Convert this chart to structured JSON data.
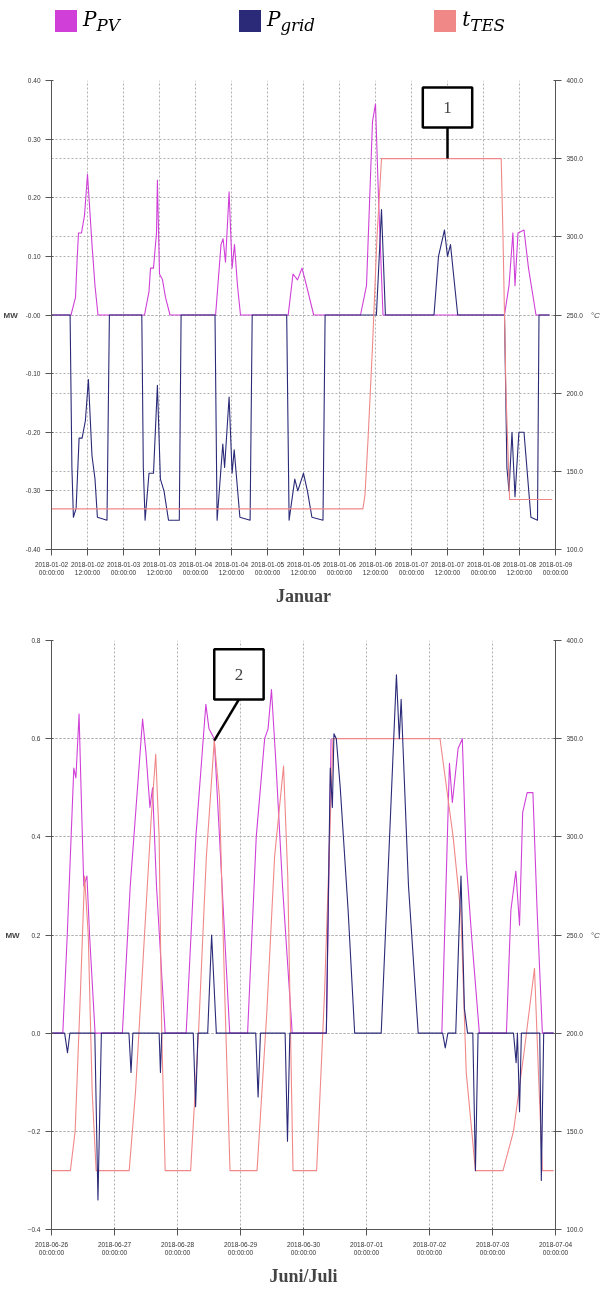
{
  "chart_data": [
    {
      "type": "line",
      "title": "Januar",
      "ylabel": "MW",
      "y2label": "°C",
      "legend": "top",
      "grid": true,
      "xlim": [
        "2018-01-02T00:00",
        "2018-01-09T00:00"
      ],
      "xticks": [
        {
          "value": "2018-01-02T00:00",
          "label": "2018-01-02 00:00:00"
        },
        {
          "value": "2018-01-02T12:00",
          "label": "2018-01-02 12:00:00"
        },
        {
          "value": "2018-01-03T00:00",
          "label": "2018-01-03 00:00:00"
        },
        {
          "value": "2018-01-03T12:00",
          "label": "2018-01-03 12:00:00"
        },
        {
          "value": "2018-01-04T00:00",
          "label": "2018-01-04 00:00:00"
        },
        {
          "value": "2018-01-04T12:00",
          "label": "2018-01-04 12:00:00"
        },
        {
          "value": "2018-01-05T00:00",
          "label": "2018-01-05 00:00:00"
        },
        {
          "value": "2018-01-05T12:00",
          "label": "2018-01-05 12:00:00"
        },
        {
          "value": "2018-01-06T00:00",
          "label": "2018-01-06 00:00:00"
        },
        {
          "value": "2018-01-06T12:00",
          "label": "2018-01-06 12:00:00"
        },
        {
          "value": "2018-01-07T00:00",
          "label": "2018-01-07 00:00:00"
        },
        {
          "value": "2018-01-07T12:00",
          "label": "2018-01-07 12:00:00"
        },
        {
          "value": "2018-01-08T00:00",
          "label": "2018-01-08 00:00:00"
        },
        {
          "value": "2018-01-08T12:00",
          "label": "2018-01-08 12:00:00"
        },
        {
          "value": "2018-01-09T00:00",
          "label": "2018-01-09 00:00:00"
        }
      ],
      "ylim": [
        -0.4,
        0.4
      ],
      "yticks": [
        {
          "value": 0.4,
          "label": "0.40"
        },
        {
          "value": 0.3,
          "label": "0.30"
        },
        {
          "value": 0.2,
          "label": "0.20"
        },
        {
          "value": 0.1,
          "label": "0.10"
        },
        {
          "value": 0,
          "label": "-0.00"
        },
        {
          "value": -0.1,
          "label": "-0.10"
        },
        {
          "value": -0.2,
          "label": "-0.20"
        },
        {
          "value": -0.3,
          "label": "-0.30"
        },
        {
          "value": -0.4,
          "label": "-0.40"
        }
      ],
      "y2lim": [
        100,
        400
      ],
      "y2ticks": [
        {
          "value": 400,
          "label": "400.0"
        },
        {
          "value": 350,
          "label": "350.0"
        },
        {
          "value": 300,
          "label": "300.0"
        },
        {
          "value": 250,
          "label": "250.0"
        },
        {
          "value": 200,
          "label": "200.0"
        },
        {
          "value": 150,
          "label": "150.0"
        },
        {
          "value": 100,
          "label": "100.0"
        }
      ],
      "annotations": [
        {
          "text": "1",
          "x": "2018-01-07T12:00",
          "y": 0.267
        }
      ],
      "series": [
        {
          "name": "P$_{PV}$",
          "color": "#d040d8",
          "x": [
            "2018-01-02T00:00",
            "2018-01-02T06:30",
            "2018-01-02T08:00",
            "2018-01-02T08:30",
            "2018-01-02T09:00",
            "2018-01-02T10:00",
            "2018-01-02T11:00",
            "2018-01-02T12:00",
            "2018-01-02T12:30",
            "2018-01-02T13:30",
            "2018-01-02T14:30",
            "2018-01-02T15:30",
            "2018-01-03T07:00",
            "2018-01-03T08:30",
            "2018-01-03T09:00",
            "2018-01-03T10:00",
            "2018-01-03T11:00",
            "2018-01-03T11:18",
            "2018-01-03T12:00",
            "2018-01-03T13:00",
            "2018-01-03T14:00",
            "2018-01-03T15:30",
            "2018-01-04T06:42",
            "2018-01-04T08:30",
            "2018-01-04T09:12",
            "2018-01-04T10:00",
            "2018-01-04T11:12",
            "2018-01-04T12:12",
            "2018-01-04T13:00",
            "2018-01-04T14:00",
            "2018-01-04T15:00",
            "2018-01-05T06:54",
            "2018-01-05T08:30",
            "2018-01-05T10:00",
            "2018-01-05T11:30",
            "2018-01-05T13:00",
            "2018-01-05T15:24",
            "2018-01-06T07:00",
            "2018-01-06T09:00",
            "2018-01-06T11:00",
            "2018-01-06T12:00",
            "2018-01-06T13:00",
            "2018-01-06T14:30",
            "2018-01-08T07:00",
            "2018-01-08T08:30",
            "2018-01-08T09:48",
            "2018-01-08T10:30",
            "2018-01-08T11:30",
            "2018-01-08T13:30",
            "2018-01-08T15:00",
            "2018-01-08T17:30",
            "2018-01-08T22:00"
          ],
          "values": [
            0,
            0,
            0.03,
            0.09,
            0.14,
            0.14,
            0.17,
            0.24,
            0.2,
            0.12,
            0.05,
            0,
            0,
            0.04,
            0.08,
            0.08,
            0.14,
            0.23,
            0.07,
            0.06,
            0.03,
            0,
            0,
            0.12,
            0.13,
            0.09,
            0.21,
            0.08,
            0.12,
            0.05,
            0,
            0,
            0.07,
            0.06,
            0.08,
            0.05,
            0,
            0,
            0.05,
            0.33,
            0.36,
            0.2,
            0,
            0,
            0.05,
            0.14,
            0.05,
            0.14,
            0.145,
            0.08,
            0,
            0
          ]
        },
        {
          "name": "P$_{grid}$",
          "color": "#2a2a78",
          "x": [
            "2018-01-02T00:00",
            "2018-01-02T06:12",
            "2018-01-02T06:48",
            "2018-01-02T07:18",
            "2018-01-02T08:12",
            "2018-01-02T09:12",
            "2018-01-02T10:12",
            "2018-01-02T11:18",
            "2018-01-02T12:18",
            "2018-01-02T13:30",
            "2018-01-02T14:30",
            "2018-01-02T15:18",
            "2018-01-02T18:30",
            "2018-01-02T19:18",
            "2018-01-03T06:06",
            "2018-01-03T06:36",
            "2018-01-03T07:12",
            "2018-01-03T08:30",
            "2018-01-03T10:00",
            "2018-01-03T11:18",
            "2018-01-03T12:18",
            "2018-01-03T13:30",
            "2018-01-03T15:00",
            "2018-01-03T18:36",
            "2018-01-03T19:12",
            "2018-01-04T06:30",
            "2018-01-04T07:12",
            "2018-01-04T09:06",
            "2018-01-04T09:42",
            "2018-01-04T11:12",
            "2018-01-04T12:12",
            "2018-01-04T12:54",
            "2018-01-04T14:48",
            "2018-01-04T18:12",
            "2018-01-04T18:54",
            "2018-01-05T06:24",
            "2018-01-05T07:12",
            "2018-01-05T09:06",
            "2018-01-05T10:06",
            "2018-01-05T12:00",
            "2018-01-05T13:18",
            "2018-01-05T14:48",
            "2018-01-05T18:30",
            "2018-01-05T19:12",
            "2018-01-06T12:18",
            "2018-01-06T14:00",
            "2018-01-06T15:18",
            "2018-01-07T07:30",
            "2018-01-07T09:00",
            "2018-01-07T11:00",
            "2018-01-07T12:00",
            "2018-01-07T13:00",
            "2018-01-07T15:24",
            "2018-01-08T07:00",
            "2018-01-08T07:48",
            "2018-01-08T08:30",
            "2018-01-08T09:30",
            "2018-01-08T10:30",
            "2018-01-08T11:48",
            "2018-01-08T13:30",
            "2018-01-08T15:48",
            "2018-01-08T18:00",
            "2018-01-08T18:30",
            "2018-01-08T22:00"
          ],
          "values": [
            0,
            0,
            -0.26,
            -0.345,
            -0.33,
            -0.21,
            -0.21,
            -0.18,
            -0.11,
            -0.24,
            -0.28,
            -0.345,
            -0.35,
            0,
            0,
            -0.26,
            -0.35,
            -0.27,
            -0.27,
            -0.12,
            -0.28,
            -0.3,
            -0.35,
            -0.35,
            0,
            0,
            -0.35,
            -0.22,
            -0.26,
            -0.14,
            -0.27,
            -0.23,
            -0.345,
            -0.35,
            0,
            0,
            -0.35,
            -0.28,
            -0.3,
            -0.27,
            -0.3,
            -0.345,
            -0.35,
            0,
            0,
            0.18,
            0,
            0,
            0.1,
            0.145,
            0.1,
            0.12,
            0,
            0,
            -0.26,
            -0.3,
            -0.2,
            -0.31,
            -0.2,
            -0.2,
            -0.345,
            -0.35,
            0,
            0
          ]
        },
        {
          "name": "t$_{TES}$",
          "color": "#f08888",
          "axis": "y2",
          "x": [
            "2018-01-02T00:00",
            "2018-01-06T07:48",
            "2018-01-06T08:30",
            "2018-01-06T09:30",
            "2018-01-06T11:00",
            "2018-01-06T12:30",
            "2018-01-06T14:00",
            "2018-01-08T05:54",
            "2018-01-08T06:30",
            "2018-01-08T07:30",
            "2018-01-08T08:42",
            "2018-01-08T22:54"
          ],
          "values": [
            126,
            126,
            135,
            170,
            230,
            300,
            350,
            350,
            300,
            200,
            132,
            132
          ]
        }
      ]
    },
    {
      "type": "line",
      "title": "Juni/Juli",
      "ylabel": "MW",
      "y2label": "°C",
      "grid": true,
      "xlim": [
        "2018-06-26T00:00",
        "2018-07-04T00:00"
      ],
      "xticks": [
        {
          "value": "2018-06-26T00:00",
          "label": "2018-06-26 00:00:00"
        },
        {
          "value": "2018-06-27T00:00",
          "label": "2018-06-27 00:00:00"
        },
        {
          "value": "2018-06-28T00:00",
          "label": "2018-06-28 00:00:00"
        },
        {
          "value": "2018-06-29T00:00",
          "label": "2018-06-29 00:00:00"
        },
        {
          "value": "2018-06-30T00:00",
          "label": "2018-06-30 00:00:00"
        },
        {
          "value": "2018-07-01T00:00",
          "label": "2018-07-01 00:00:00"
        },
        {
          "value": "2018-07-02T00:00",
          "label": "2018-07-02 00:00:00"
        },
        {
          "value": "2018-07-03T00:00",
          "label": "2018-07-03 00:00:00"
        },
        {
          "value": "2018-07-04T00:00",
          "label": "2018-07-04 00:00:00"
        }
      ],
      "ylim": [
        -0.4,
        0.8
      ],
      "yticks": [
        0.8,
        0.6,
        0.4,
        0.2,
        {
          "value": 0,
          "label": "0.0"
        },
        -0.2,
        -0.4
      ],
      "y2lim": [
        100,
        400
      ],
      "y2ticks": [
        {
          "value": 400,
          "label": "400.0"
        },
        {
          "value": 350,
          "label": "350.0"
        },
        {
          "value": 300,
          "label": "300.0"
        },
        {
          "value": 250,
          "label": "250.0"
        },
        {
          "value": 200,
          "label": "200.0"
        },
        {
          "value": 150,
          "label": "150.0"
        },
        {
          "value": 100,
          "label": "100.0"
        }
      ],
      "annotations": [
        {
          "text": "2",
          "x": "2018-06-28T14:00",
          "y": 0.596
        }
      ],
      "series": [
        {
          "color": "#d040d8",
          "x": [
            "2018-06-26T00:00",
            "2018-06-26T04:18",
            "2018-06-26T06:00",
            "2018-06-26T08:30",
            "2018-06-26T09:18",
            "2018-06-26T10:30",
            "2018-06-26T11:30",
            "2018-06-26T12:18",
            "2018-06-26T13:30",
            "2018-06-26T14:30",
            "2018-06-26T16:36",
            "2018-06-27T03:00",
            "2018-06-27T06:00",
            "2018-06-27T10:42",
            "2018-06-27T12:00",
            "2018-06-27T13:30",
            "2018-06-27T14:30",
            "2018-06-27T16:00",
            "2018-06-27T19:18",
            "2018-06-28T03:18",
            "2018-06-28T07:00",
            "2018-06-28T10:48",
            "2018-06-28T12:00",
            "2018-06-28T14:00",
            "2018-06-28T16:00",
            "2018-06-28T19:54",
            "2018-06-29T02:42",
            "2018-06-29T06:00",
            "2018-06-29T09:12",
            "2018-06-29T10:30",
            "2018-06-29T11:48",
            "2018-06-29T13:30",
            "2018-06-29T16:00",
            "2018-06-29T19:42",
            "2018-06-30T08:42",
            "2018-06-30T10:30",
            "2018-06-30T11:00",
            "2018-07-02T04:42",
            "2018-07-02T07:36",
            "2018-07-02T08:42",
            "2018-07-02T10:54",
            "2018-07-02T12:30",
            "2018-07-02T14:00",
            "2018-07-02T16:00",
            "2018-07-02T19:00",
            "2018-07-03T05:18",
            "2018-07-03T07:00",
            "2018-07-03T08:54",
            "2018-07-03T10:18",
            "2018-07-03T11:30",
            "2018-07-03T13:12",
            "2018-07-03T15:24",
            "2018-07-03T17:00",
            "2018-07-03T19:00",
            "2018-07-03T23:18"
          ],
          "values": [
            0,
            0,
            0.2,
            0.54,
            0.52,
            0.65,
            0.45,
            0.3,
            0.32,
            0.2,
            0,
            0,
            0.3,
            0.64,
            0.57,
            0.46,
            0.5,
            0.3,
            0,
            0,
            0.4,
            0.67,
            0.62,
            0.6,
            0.4,
            0,
            0,
            0.4,
            0.6,
            0.62,
            0.7,
            0.55,
            0.3,
            0,
            0,
            0.6,
            null,
            0,
            0.55,
            0.47,
            0.58,
            0.6,
            0.35,
            0.2,
            0,
            0,
            0.25,
            0.33,
            0.22,
            0.45,
            0.49,
            0.49,
            0.25,
            0,
            0
          ]
        },
        {
          "color": "#f08888",
          "axis": "y2",
          "x": [
            "2018-06-26T00:00",
            "2018-06-26T07:12",
            "2018-06-26T09:00",
            "2018-06-26T11:00",
            "2018-06-26T12:36",
            "2018-06-26T14:00",
            "2018-06-26T15:30",
            "2018-06-26T17:00",
            "2018-06-27T05:36",
            "2018-06-27T08:00",
            "2018-06-27T11:00",
            "2018-06-27T14:00",
            "2018-06-27T15:42",
            "2018-06-27T17:00",
            "2018-06-27T18:00",
            "2018-06-27T19:18",
            "2018-06-28T05:00",
            "2018-06-28T08:00",
            "2018-06-28T11:00",
            "2018-06-28T14:00",
            "2018-06-28T16:00",
            "2018-06-28T18:00",
            "2018-06-28T20:00",
            "2018-06-29T06:18",
            "2018-06-29T10:00",
            "2018-06-29T13:00",
            "2018-06-29T16:24",
            "2018-06-29T18:00",
            "2018-06-29T20:00",
            "2018-06-30T05:00",
            "2018-06-30T08:00",
            "2018-06-30T10:00",
            "2018-06-30T11:12",
            "2018-07-02T04:00",
            "2018-07-02T07:00",
            "2018-07-02T09:00",
            "2018-07-02T12:00",
            "2018-07-02T14:00",
            "2018-07-02T17:30",
            "2018-07-03T04:00",
            "2018-07-03T08:00",
            "2018-07-03T12:00",
            "2018-07-03T16:00",
            "2018-07-03T17:30",
            "2018-07-03T19:00",
            "2018-07-03T23:18"
          ],
          "values": [
            130,
            130,
            150,
            220,
            280,
            250,
            170,
            130,
            130,
            170,
            240,
            310,
            342,
            300,
            200,
            130,
            130,
            200,
            290,
            349,
            320,
            220,
            130,
            130,
            210,
            290,
            336,
            280,
            130,
            130,
            220,
            300,
            350,
            350,
            320,
            300,
            260,
            180,
            130,
            130,
            150,
            190,
            233,
            180,
            130,
            130
          ]
        },
        {
          "color": "#2a2a78",
          "x": [
            "2018-06-26T00:00",
            "2018-06-26T05:00",
            "2018-06-26T06:06",
            "2018-06-26T07:00",
            "2018-06-26T16:30",
            "2018-06-26T17:42",
            "2018-06-26T19:00",
            "2018-06-27T05:30",
            "2018-06-27T06:18",
            "2018-06-27T07:00",
            "2018-06-27T17:00",
            "2018-06-27T17:30",
            "2018-06-27T18:00",
            "2018-06-28T06:00",
            "2018-06-28T06:54",
            "2018-06-28T07:48",
            "2018-06-28T11:30",
            "2018-06-28T13:00",
            "2018-06-28T14:48",
            "2018-06-29T05:48",
            "2018-06-29T06:42",
            "2018-06-29T07:36",
            "2018-06-29T17:00",
            "2018-06-29T17:54",
            "2018-06-29T18:48",
            "2018-06-30T08:42",
            "2018-06-30T10:12",
            "2018-06-30T11:00",
            "2018-06-30T11:36",
            "2018-06-30T12:30",
            "2018-06-30T14:00",
            "2018-06-30T17:00",
            "2018-06-30T19:30",
            "2018-07-01T05:36",
            "2018-07-01T08:00",
            "2018-07-01T11:24",
            "2018-07-01T12:30",
            "2018-07-01T13:12",
            "2018-07-01T16:00",
            "2018-07-01T19:42",
            "2018-07-02T05:00",
            "2018-07-02T06:00",
            "2018-07-02T07:00",
            "2018-07-02T10:00",
            "2018-07-02T11:12",
            "2018-07-02T12:00",
            "2018-07-02T13:18",
            "2018-07-02T14:30",
            "2018-07-02T16:30",
            "2018-07-02T17:30",
            "2018-07-02T18:30",
            "2018-07-03T08:00",
            "2018-07-03T09:00",
            "2018-07-03T09:30",
            "2018-07-03T10:18",
            "2018-07-03T11:00",
            "2018-07-03T18:00",
            "2018-07-03T18:36",
            "2018-07-03T19:30",
            "2018-07-03T23:18"
          ],
          "values": [
            0,
            0,
            -0.04,
            0,
            0,
            -0.34,
            0,
            0,
            -0.08,
            0,
            0,
            -0.08,
            0,
            0,
            -0.15,
            0,
            0,
            0.2,
            0,
            0,
            -0.13,
            0,
            0,
            -0.22,
            0,
            0,
            0.54,
            0.46,
            0.61,
            0.6,
            0.5,
            0.25,
            0,
            0,
            0.3,
            0.73,
            0.6,
            0.68,
            0.3,
            0,
            0,
            -0.03,
            0,
            0,
            0.2,
            0.32,
            0.05,
            0,
            0,
            -0.28,
            0,
            0,
            -0.06,
            0,
            -0.16,
            0,
            0,
            -0.3,
            0,
            0
          ]
        }
      ]
    }
  ]
}
